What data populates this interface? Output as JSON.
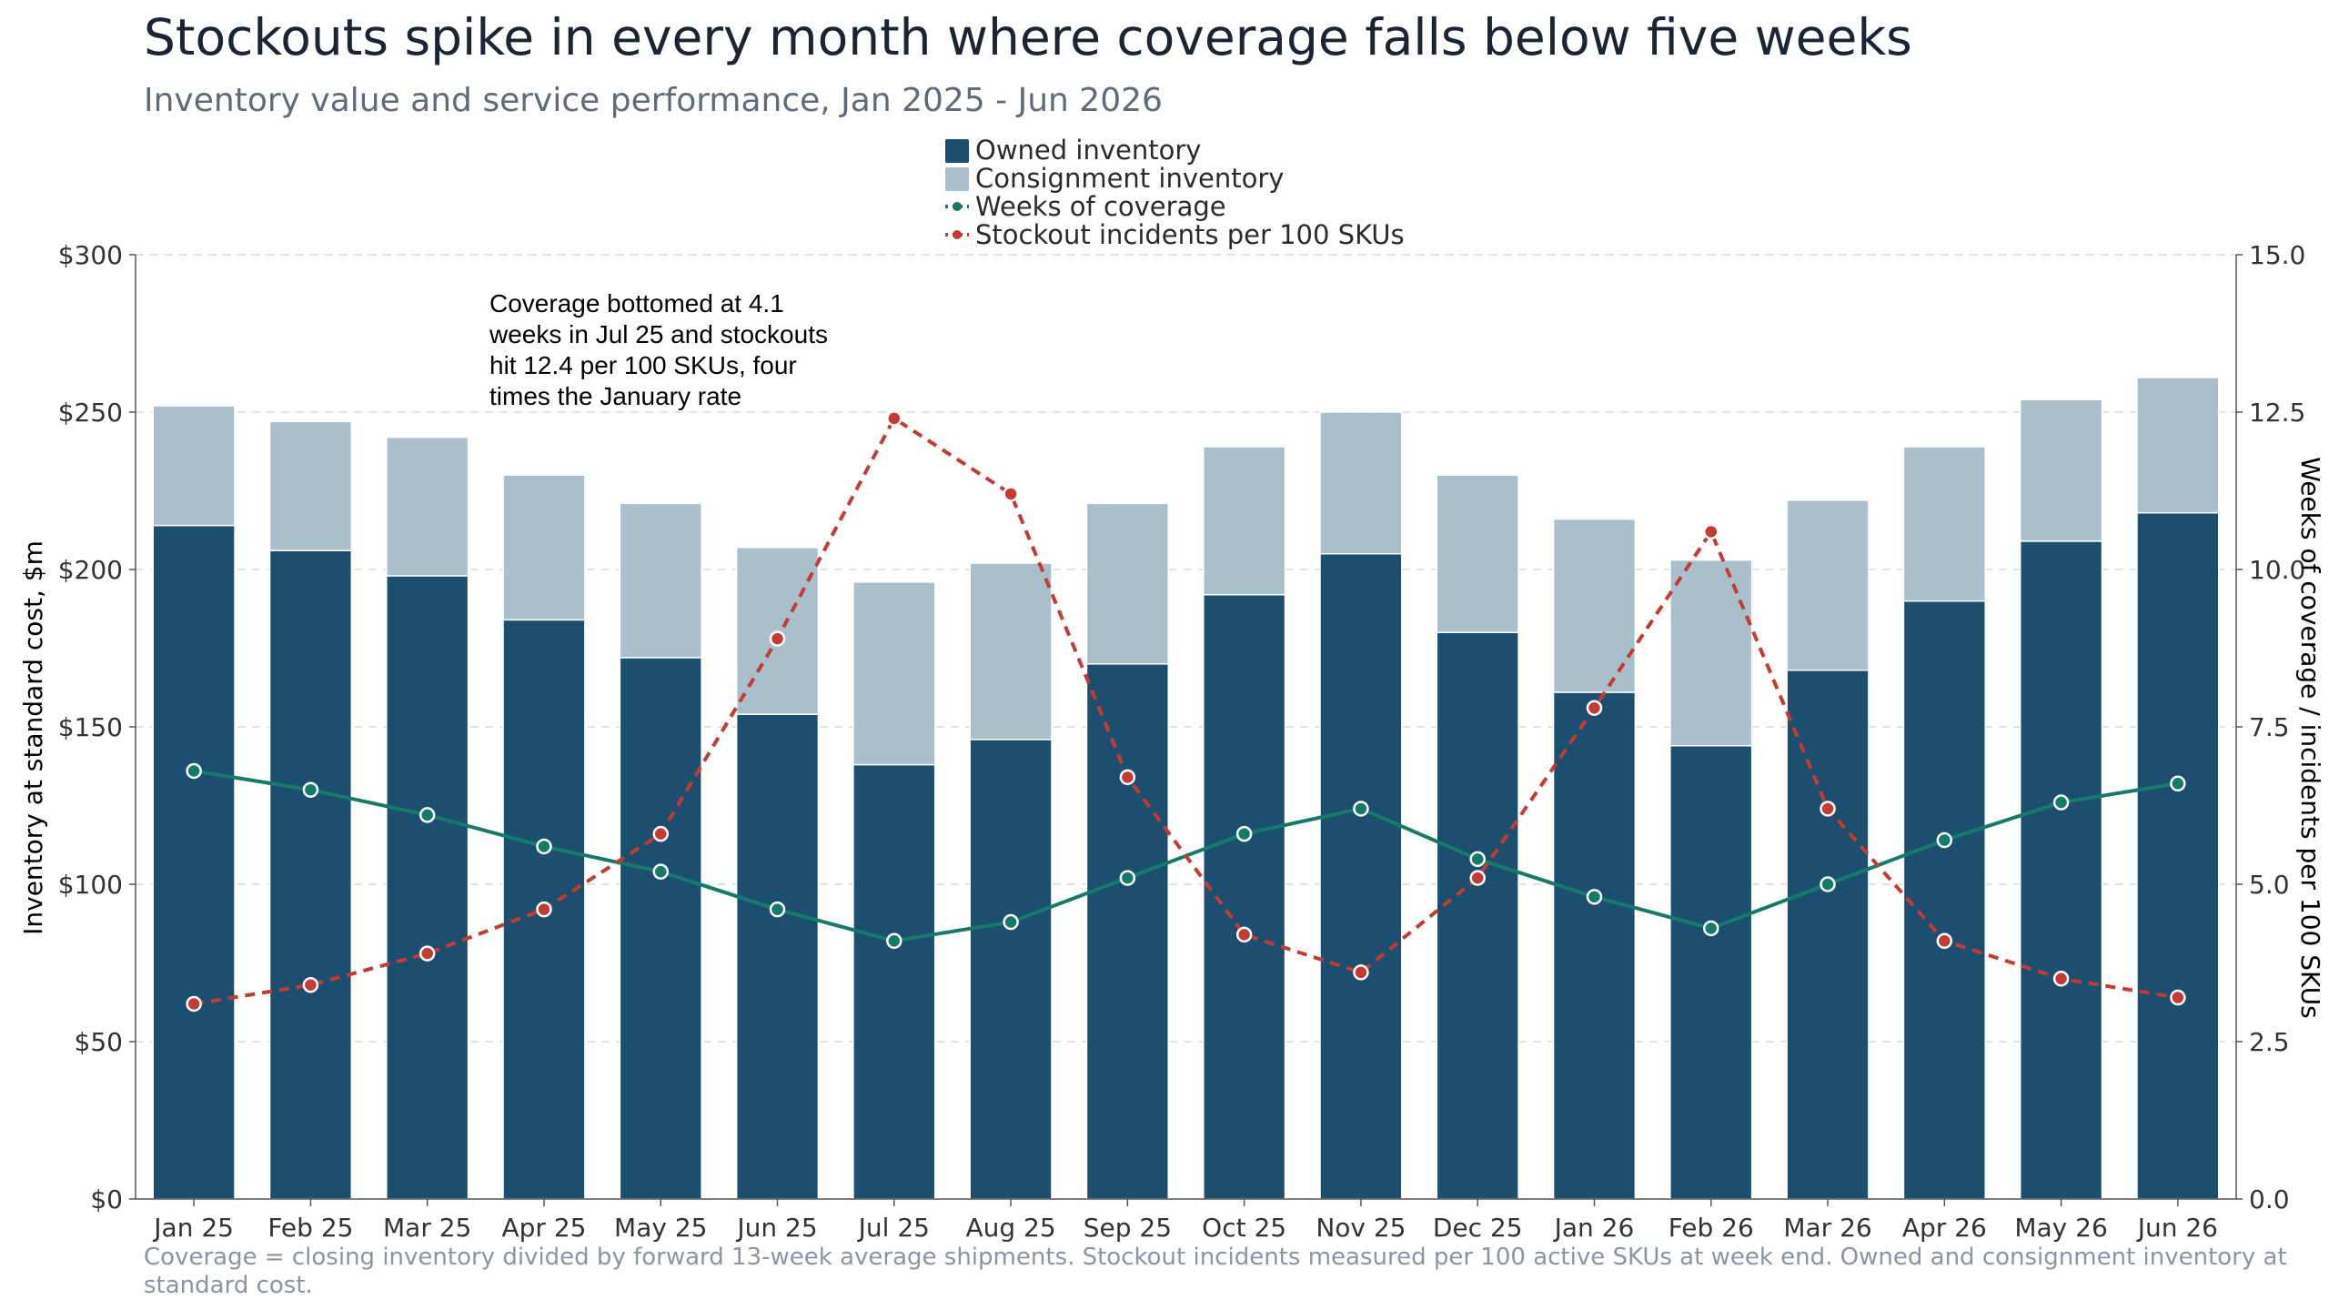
{
  "title": "Stockouts spike in every month where coverage falls below five weeks",
  "subtitle": "Inventory value and service performance, Jan 2025 - Jun 2026",
  "annotation": [
    "Coverage bottomed at 4.1",
    "weeks in Jul 25 and stockouts",
    "hit 12.4 per 100 SKUs, four",
    "times the January rate"
  ],
  "footnote": [
    "Coverage = closing inventory divided by forward 13-week average shipments. Stockout incidents measured per 100 active SKUs at week end. Owned and consignment inventory at",
    "standard cost."
  ],
  "colors": {
    "owned": "#1c4e70",
    "consignment": "#a9bfcc",
    "coverage": "#157a6a",
    "stockout": "#c33b33"
  },
  "chart_data": {
    "type": "bar",
    "stacked": true,
    "categories": [
      "Jan 25",
      "Feb 25",
      "Mar 25",
      "Apr 25",
      "May 25",
      "Jun 25",
      "Jul 25",
      "Aug 25",
      "Sep 25",
      "Oct 25",
      "Nov 25",
      "Dec 25",
      "Jan 26",
      "Feb 26",
      "Mar 26",
      "Apr 26",
      "May 26",
      "Jun 26"
    ],
    "series": [
      {
        "name": "Owned inventory",
        "type": "bar",
        "axis": "left",
        "values": [
          214,
          206,
          198,
          184,
          172,
          154,
          138,
          146,
          170,
          192,
          205,
          180,
          161,
          144,
          168,
          190,
          209,
          218
        ]
      },
      {
        "name": "Consignment inventory",
        "type": "bar",
        "axis": "left",
        "values": [
          38,
          41,
          44,
          46,
          49,
          53,
          58,
          56,
          51,
          47,
          45,
          50,
          55,
          59,
          54,
          49,
          45,
          43
        ]
      },
      {
        "name": "Weeks of coverage",
        "type": "line",
        "axis": "right",
        "values": [
          6.8,
          6.5,
          6.1,
          5.6,
          5.2,
          4.6,
          4.1,
          4.4,
          5.1,
          5.8,
          6.2,
          5.4,
          4.8,
          4.3,
          5.0,
          5.7,
          6.3,
          6.6
        ]
      },
      {
        "name": "Stockout incidents per 100 SKUs",
        "type": "line",
        "axis": "right",
        "values": [
          3.1,
          3.4,
          3.9,
          4.6,
          5.8,
          8.9,
          12.4,
          11.2,
          6.7,
          4.2,
          3.6,
          5.1,
          7.8,
          10.6,
          6.2,
          4.1,
          3.5,
          3.2
        ]
      }
    ],
    "ylim": [
      0,
      300
    ],
    "ylim_right": [
      0,
      15
    ],
    "yticks": [
      "$0",
      "$50",
      "$100",
      "$150",
      "$200",
      "$250",
      "$300"
    ],
    "yticks_right": [
      "0.0",
      "2.5",
      "5.0",
      "7.5",
      "10.0",
      "12.5",
      "15.0"
    ],
    "ylabel": "Inventory at standard cost, $m",
    "ylabel_right": "Weeks of coverage / incidents per 100 SKUs",
    "grid": true,
    "legend": "top-center"
  }
}
